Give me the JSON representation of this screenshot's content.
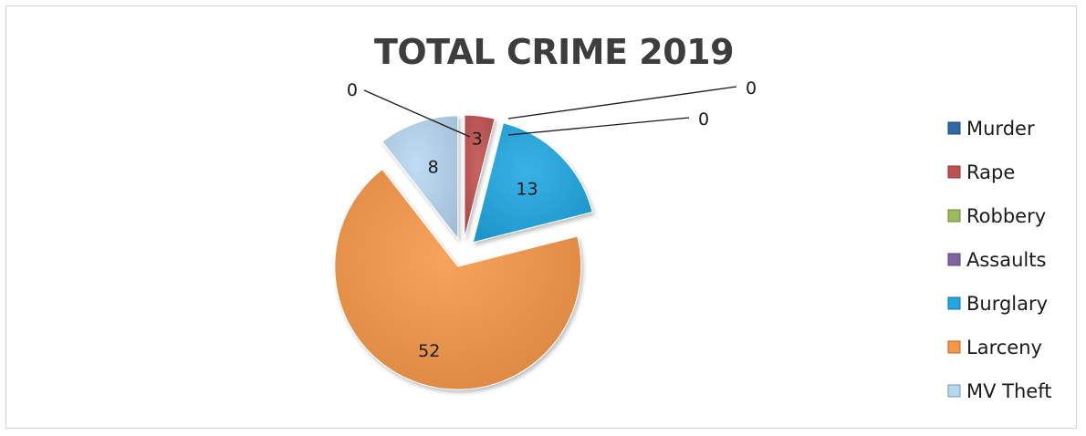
{
  "chart_data": {
    "type": "pie",
    "title": "TOTAL CRIME 2019",
    "categories": [
      "Murder",
      "Rape",
      "Robbery",
      "Assaults",
      "Burglary",
      "Larceny",
      "MV Theft"
    ],
    "values": [
      0,
      3,
      0,
      0,
      13,
      52,
      8
    ],
    "colors": [
      "#2e6aa8",
      "#c0504d",
      "#9bbb59",
      "#8064a2",
      "#1ea7e1",
      "#f79646",
      "#b6d7f0"
    ],
    "exploded": true,
    "legend_position": "right",
    "data_labels": [
      "0",
      "3",
      "0",
      "0",
      "13",
      "52",
      "8"
    ]
  }
}
